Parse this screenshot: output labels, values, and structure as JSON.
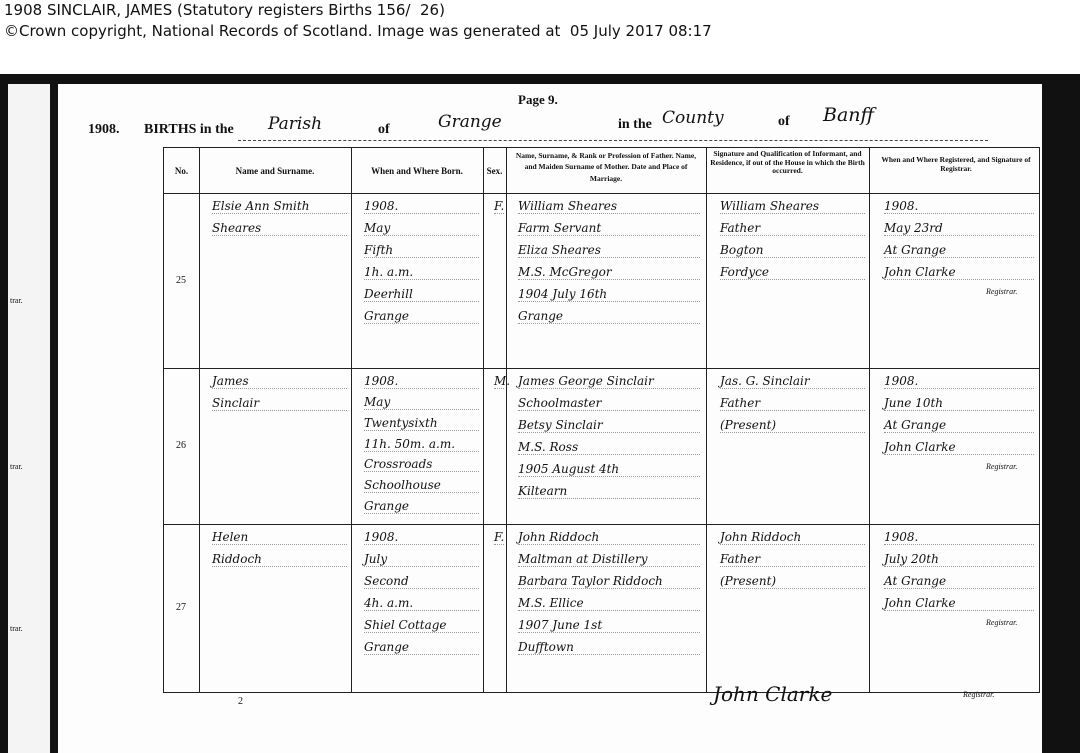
{
  "caption": {
    "line1": "1908 SINCLAIR, JAMES (Statutory registers Births 156/  26)",
    "line2": "©Crown copyright, National Records of Scotland. Image was generated at  05 July 2017 08:17"
  },
  "register": {
    "page": "Page 9.",
    "year": "1908.",
    "births_in_the": "BIRTHS in the",
    "district_type": "Parish",
    "of1": "of",
    "parish": "Grange",
    "in_the": "in the",
    "county_type": "County",
    "of2": "of",
    "county": "Banff",
    "headers": [
      "No.",
      "Name and Surname.",
      "When and Where Born.",
      "Sex.",
      "Name, Surname, & Rank or Profession of Father. Name, and Maiden Surname of Mother. Date and Place of Marriage.",
      "Signature and Qualification of Informant, and Residence, if out of the House in which the Birth occurred.",
      "When and Where Registered, and Signature of Registrar."
    ],
    "entries": [
      {
        "no": "25",
        "name": [
          "Elsie Ann Smith",
          "Sheares"
        ],
        "born": [
          "1908.",
          "May",
          "Fifth",
          "1h. a.m.",
          "Deerhill",
          "Grange"
        ],
        "sex": "F.",
        "parents": [
          "William Sheares",
          "Farm Servant",
          "Eliza Sheares",
          "M.S. McGregor",
          "1904 July 16th",
          "Grange"
        ],
        "informant": [
          "William Sheares",
          "Father",
          "Bogton",
          "Fordyce"
        ],
        "registered": [
          "1908.",
          "May 23rd",
          "At Grange",
          "John Clarke",
          "Registrar."
        ]
      },
      {
        "no": "26",
        "name": [
          "James",
          "Sinclair"
        ],
        "born": [
          "1908.",
          "May",
          "Twentysixth",
          "11h. 50m. a.m.",
          "Crossroads",
          "Schoolhouse",
          "Grange"
        ],
        "sex": "M.",
        "parents": [
          "James George Sinclair",
          "Schoolmaster",
          "Betsy Sinclair",
          "M.S. Ross",
          "1905 August 4th",
          "Kiltearn"
        ],
        "informant": [
          "Jas. G. Sinclair",
          "Father",
          "(Present)"
        ],
        "registered": [
          "1908.",
          "June 10th",
          "At Grange",
          "John Clarke",
          "Registrar."
        ]
      },
      {
        "no": "27",
        "name": [
          "Helen",
          "Riddoch"
        ],
        "born": [
          "1908.",
          "July",
          "Second",
          "4h. a.m.",
          "Shiel Cottage",
          "Grange"
        ],
        "sex": "F.",
        "parents": [
          "John Riddoch",
          "Maltman at Distillery",
          "Barbara Taylor Riddoch",
          "M.S. Ellice",
          "1907 June 1st",
          "Dufftown"
        ],
        "informant": [
          "John Riddoch",
          "Father",
          "(Present)"
        ],
        "registered": [
          "1908.",
          "July 20th",
          "At Grange",
          "John Clarke",
          "Registrar."
        ]
      }
    ],
    "footer": {
      "number": "2",
      "signature": "John Clarke",
      "registrar": "Registrar."
    },
    "prev_margin": [
      "trar.",
      "trar.",
      "trar."
    ]
  }
}
